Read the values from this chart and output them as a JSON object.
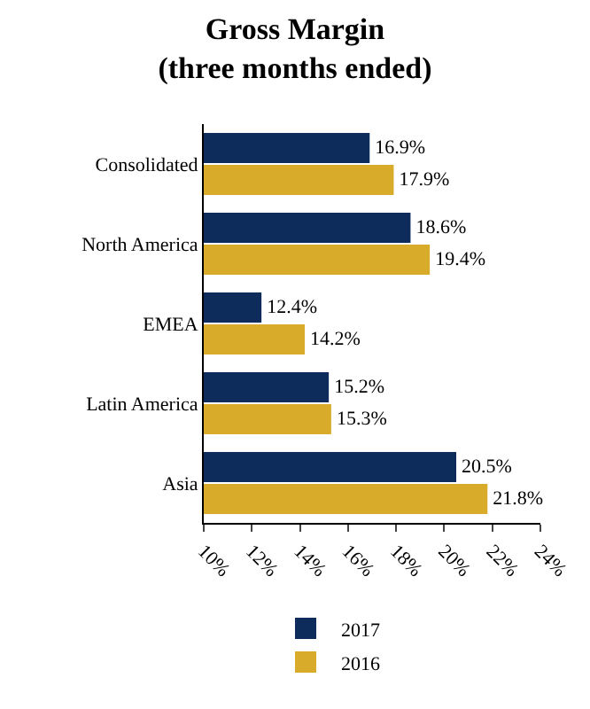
{
  "chart_data": {
    "type": "bar",
    "orientation": "horizontal",
    "title": "Gross Margin\n(three months ended)",
    "categories": [
      "Consolidated",
      "North America",
      "EMEA",
      "Latin America",
      "Asia"
    ],
    "series": [
      {
        "name": "2017",
        "color": "#0d2c5b",
        "values": [
          16.9,
          18.6,
          12.4,
          15.2,
          20.5
        ],
        "value_labels": [
          "16.9%",
          "18.6%",
          "12.4%",
          "15.2%",
          "20.5%"
        ]
      },
      {
        "name": "2016",
        "color": "#d9ab2a",
        "values": [
          17.9,
          19.4,
          14.2,
          15.3,
          21.8
        ],
        "value_labels": [
          "17.9%",
          "19.4%",
          "14.2%",
          "15.3%",
          "21.8%"
        ]
      }
    ],
    "xlim": [
      10,
      24
    ],
    "xticks": [
      {
        "value": 10,
        "label": "10%"
      },
      {
        "value": 12,
        "label": "12%"
      },
      {
        "value": 14,
        "label": "14%"
      },
      {
        "value": 16,
        "label": "16%"
      },
      {
        "value": 18,
        "label": "18%"
      },
      {
        "value": 20,
        "label": "20%"
      },
      {
        "value": 22,
        "label": "22%"
      },
      {
        "value": 24,
        "label": "24%"
      }
    ],
    "grid": false,
    "legend": "bottom"
  }
}
